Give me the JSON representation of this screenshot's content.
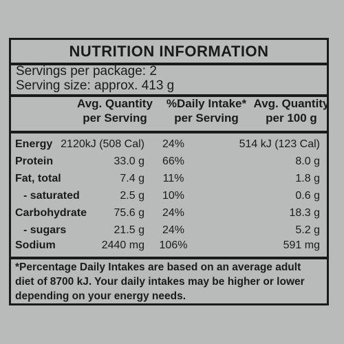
{
  "label": {
    "title": "NUTRITION INFORMATION",
    "servings_per_package": "Servings per package: 2",
    "serving_size": "Serving size: approx. 413 g"
  },
  "columns": [
    {
      "line1": "Avg. Quantity",
      "line2": "per Serving"
    },
    {
      "line1": "%Daily Intake*",
      "line2": "per Serving"
    },
    {
      "line1": "Avg. Quantity",
      "line2": "per 100 g"
    }
  ],
  "rows": [
    {
      "label": "Energy",
      "per_serving": "2120kJ (508 Cal)",
      "daily_intake": "24%",
      "per_100g": "514 kJ (123 Cal)"
    },
    {
      "label": "Protein",
      "per_serving": "33.0 g",
      "daily_intake": "66%",
      "per_100g": "8.0 g"
    },
    {
      "label": "Fat, total",
      "per_serving": "7.4 g",
      "daily_intake": "11%",
      "per_100g": "1.8 g"
    },
    {
      "label": "- saturated",
      "per_serving": "2.5 g",
      "daily_intake": "10%",
      "per_100g": "0.6 g"
    },
    {
      "label": "Carbohydrate",
      "per_serving": "75.6 g",
      "daily_intake": "24%",
      "per_100g": "18.3 g"
    },
    {
      "label": "- sugars",
      "per_serving": "21.5 g",
      "daily_intake": "24%",
      "per_100g": "5.2 g"
    },
    {
      "label": "Sodium",
      "per_serving": "2440 mg",
      "daily_intake": "106%",
      "per_100g": "591 mg"
    }
  ],
  "footnote": [
    "*Percentage Daily Intakes are based on an average adult",
    "diet of 8700 kJ. Your daily intakes may be higher or lower",
    "depending on your energy needs."
  ]
}
